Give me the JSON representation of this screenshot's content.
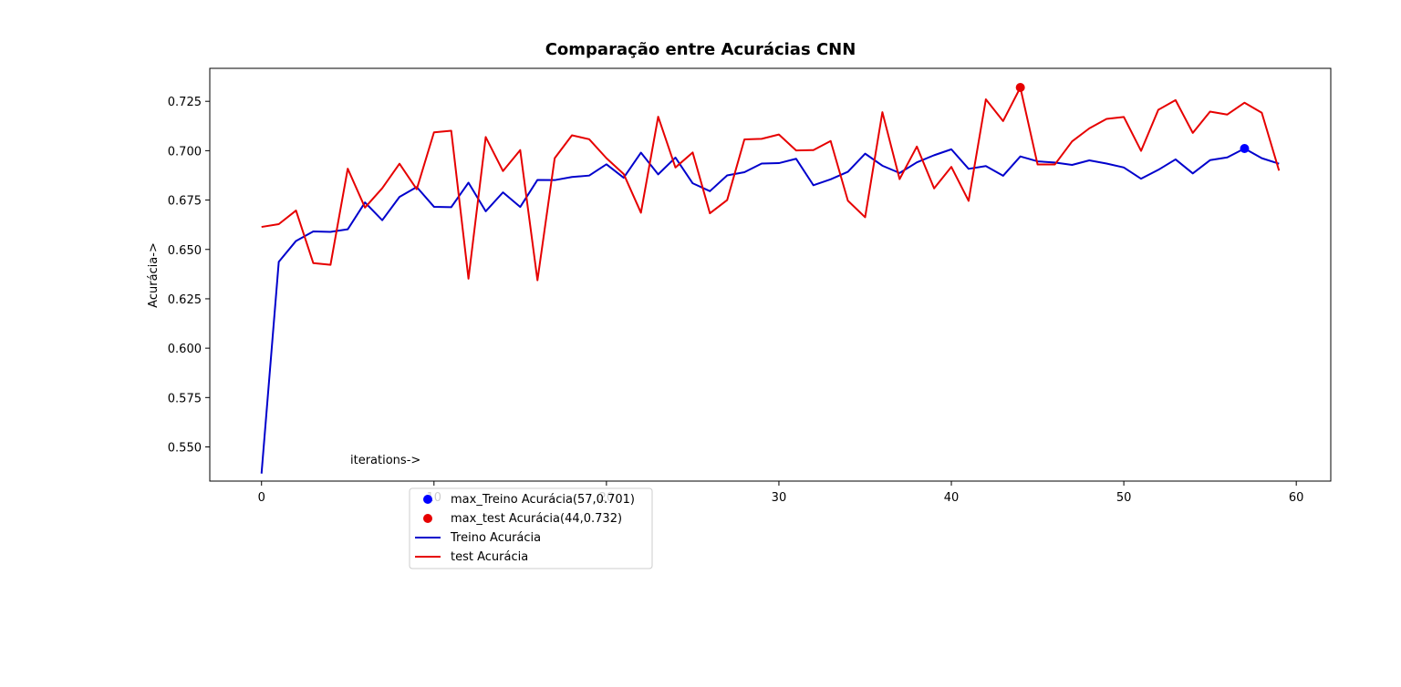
{
  "chart_data": {
    "type": "line",
    "title": "Comparação entre Acurácias CNN",
    "xlabel": "iterations->",
    "ylabel": "Acurácia->",
    "xlim": [
      -3,
      62
    ],
    "ylim": [
      0.5327,
      0.7417
    ],
    "xticks": [
      0,
      10,
      20,
      30,
      40,
      50,
      60
    ],
    "yticks": [
      0.55,
      0.575,
      0.6,
      0.625,
      0.65,
      0.675,
      0.7,
      0.725
    ],
    "ytick_labels": [
      "0.550",
      "0.575",
      "0.600",
      "0.625",
      "0.650",
      "0.675",
      "0.700",
      "0.725"
    ],
    "grid": false,
    "legend_position": "below plot, left of center",
    "series": [
      {
        "name": "Treino Acurácia",
        "color": "#0000cc",
        "x_start": 0,
        "values": [
          0.5365,
          0.6437,
          0.6543,
          0.6591,
          0.6589,
          0.6602,
          0.6738,
          0.6648,
          0.6766,
          0.6816,
          0.6716,
          0.6714,
          0.6838,
          0.6693,
          0.6789,
          0.6715,
          0.6852,
          0.6851,
          0.6867,
          0.6874,
          0.6931,
          0.6863,
          0.699,
          0.688,
          0.6965,
          0.6835,
          0.6795,
          0.6875,
          0.6891,
          0.6935,
          0.6937,
          0.6959,
          0.6825,
          0.6855,
          0.6893,
          0.6985,
          0.6924,
          0.6887,
          0.6941,
          0.6977,
          0.7007,
          0.6908,
          0.6922,
          0.6873,
          0.6971,
          0.6946,
          0.694,
          0.6928,
          0.6951,
          0.6935,
          0.6915,
          0.6858,
          0.6903,
          0.6956,
          0.6885,
          0.6952,
          0.6966,
          0.7011,
          0.6962,
          0.6934
        ]
      },
      {
        "name": "test Acurácia",
        "color": "#e60000",
        "x_start": 0,
        "values": [
          0.6614,
          0.6628,
          0.6697,
          0.6431,
          0.6422,
          0.6909,
          0.6712,
          0.681,
          0.6934,
          0.6805,
          0.7093,
          0.7101,
          0.6352,
          0.7069,
          0.6897,
          0.7003,
          0.6344,
          0.6962,
          0.7078,
          0.7058,
          0.6962,
          0.6882,
          0.6686,
          0.7172,
          0.6915,
          0.6991,
          0.6683,
          0.675,
          0.7057,
          0.706,
          0.7082,
          0.7001,
          0.7003,
          0.7049,
          0.6747,
          0.6663,
          0.7195,
          0.6856,
          0.7021,
          0.6809,
          0.6918,
          0.6746,
          0.726,
          0.715,
          0.732,
          0.693,
          0.693,
          0.7047,
          0.7113,
          0.7161,
          0.7171,
          0.6999,
          0.7207,
          0.7256,
          0.709,
          0.7198,
          0.7183,
          0.7243,
          0.7192,
          0.6899
        ]
      }
    ],
    "markers": [
      {
        "name": "max_Treino Acurácia(57,0.701)",
        "color": "#0000ff",
        "x": 57,
        "y": 0.7011
      },
      {
        "name": "max_test Acurácia(44,0.732)",
        "color": "#e60000",
        "x": 44,
        "y": 0.732
      }
    ]
  }
}
